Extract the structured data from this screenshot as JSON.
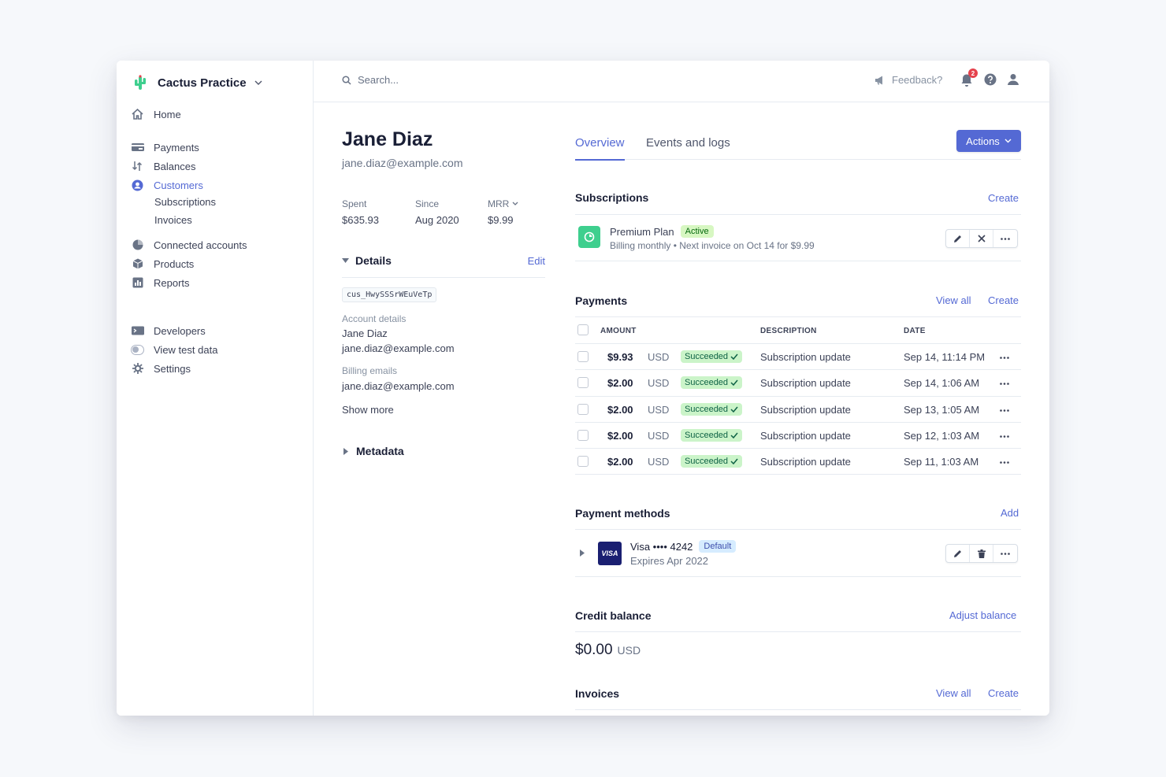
{
  "workspace": {
    "name": "Cactus Practice"
  },
  "sidebar": {
    "home": "Home",
    "payments": "Payments",
    "balances": "Balances",
    "customers": "Customers",
    "subscriptions": "Subscriptions",
    "invoices": "Invoices",
    "connected_accounts": "Connected accounts",
    "products": "Products",
    "reports": "Reports",
    "developers": "Developers",
    "view_test_data": "View test data",
    "settings": "Settings"
  },
  "topbar": {
    "search_placeholder": "Search...",
    "feedback": "Feedback?",
    "notification_count": "2"
  },
  "customer": {
    "name": "Jane Diaz",
    "email": "jane.diaz@example.com",
    "stats": {
      "spent_label": "Spent",
      "spent_value": "$635.93",
      "since_label": "Since",
      "since_value": "Aug 2020",
      "mrr_label": "MRR",
      "mrr_value": "$9.99"
    },
    "details": {
      "title": "Details",
      "edit": "Edit",
      "id": "cus_HwySSSrWEuVeTp",
      "account_label": "Account details",
      "account_name": "Jane Diaz",
      "account_email": "jane.diaz@example.com",
      "billing_label": "Billing emails",
      "billing_email": "jane.diaz@example.com",
      "show_more": "Show more"
    },
    "metadata": "Metadata"
  },
  "tabs": {
    "overview": "Overview",
    "events": "Events and logs"
  },
  "actions_label": "Actions",
  "subscriptions": {
    "title": "Subscriptions",
    "create": "Create",
    "plan_name": "Premium Plan",
    "status": "Active",
    "billing": "Billing monthly • Next invoice on Oct 14 for $9.99"
  },
  "payments": {
    "title": "Payments",
    "view_all": "View all",
    "create": "Create",
    "headers": {
      "amount": "AMOUNT",
      "description": "DESCRIPTION",
      "date": "DATE"
    },
    "rows": [
      {
        "amount": "$9.93",
        "currency": "USD",
        "status": "Succeeded",
        "description": "Subscription update",
        "date": "Sep 14, 11:14 PM"
      },
      {
        "amount": "$2.00",
        "currency": "USD",
        "status": "Succeeded",
        "description": "Subscription update",
        "date": "Sep 14, 1:06 AM"
      },
      {
        "amount": "$2.00",
        "currency": "USD",
        "status": "Succeeded",
        "description": "Subscription update",
        "date": "Sep 13, 1:05 AM"
      },
      {
        "amount": "$2.00",
        "currency": "USD",
        "status": "Succeeded",
        "description": "Subscription update",
        "date": "Sep 12, 1:03 AM"
      },
      {
        "amount": "$2.00",
        "currency": "USD",
        "status": "Succeeded",
        "description": "Subscription update",
        "date": "Sep 11, 1:03 AM"
      }
    ]
  },
  "payment_methods": {
    "title": "Payment methods",
    "add": "Add",
    "brand_logo": "VISA",
    "card": "Visa •••• 4242",
    "default": "Default",
    "expires": "Expires Apr 2022"
  },
  "credit_balance": {
    "title": "Credit balance",
    "adjust": "Adjust balance",
    "amount": "$0.00",
    "currency": "USD"
  },
  "invoices": {
    "title": "Invoices",
    "view_all": "View all",
    "create": "Create"
  },
  "colors": {
    "accent": "#5469d4",
    "success_bg": "#cbf4c9",
    "success_text": "#0e6245",
    "plan_icon": "#3ecf8e"
  }
}
